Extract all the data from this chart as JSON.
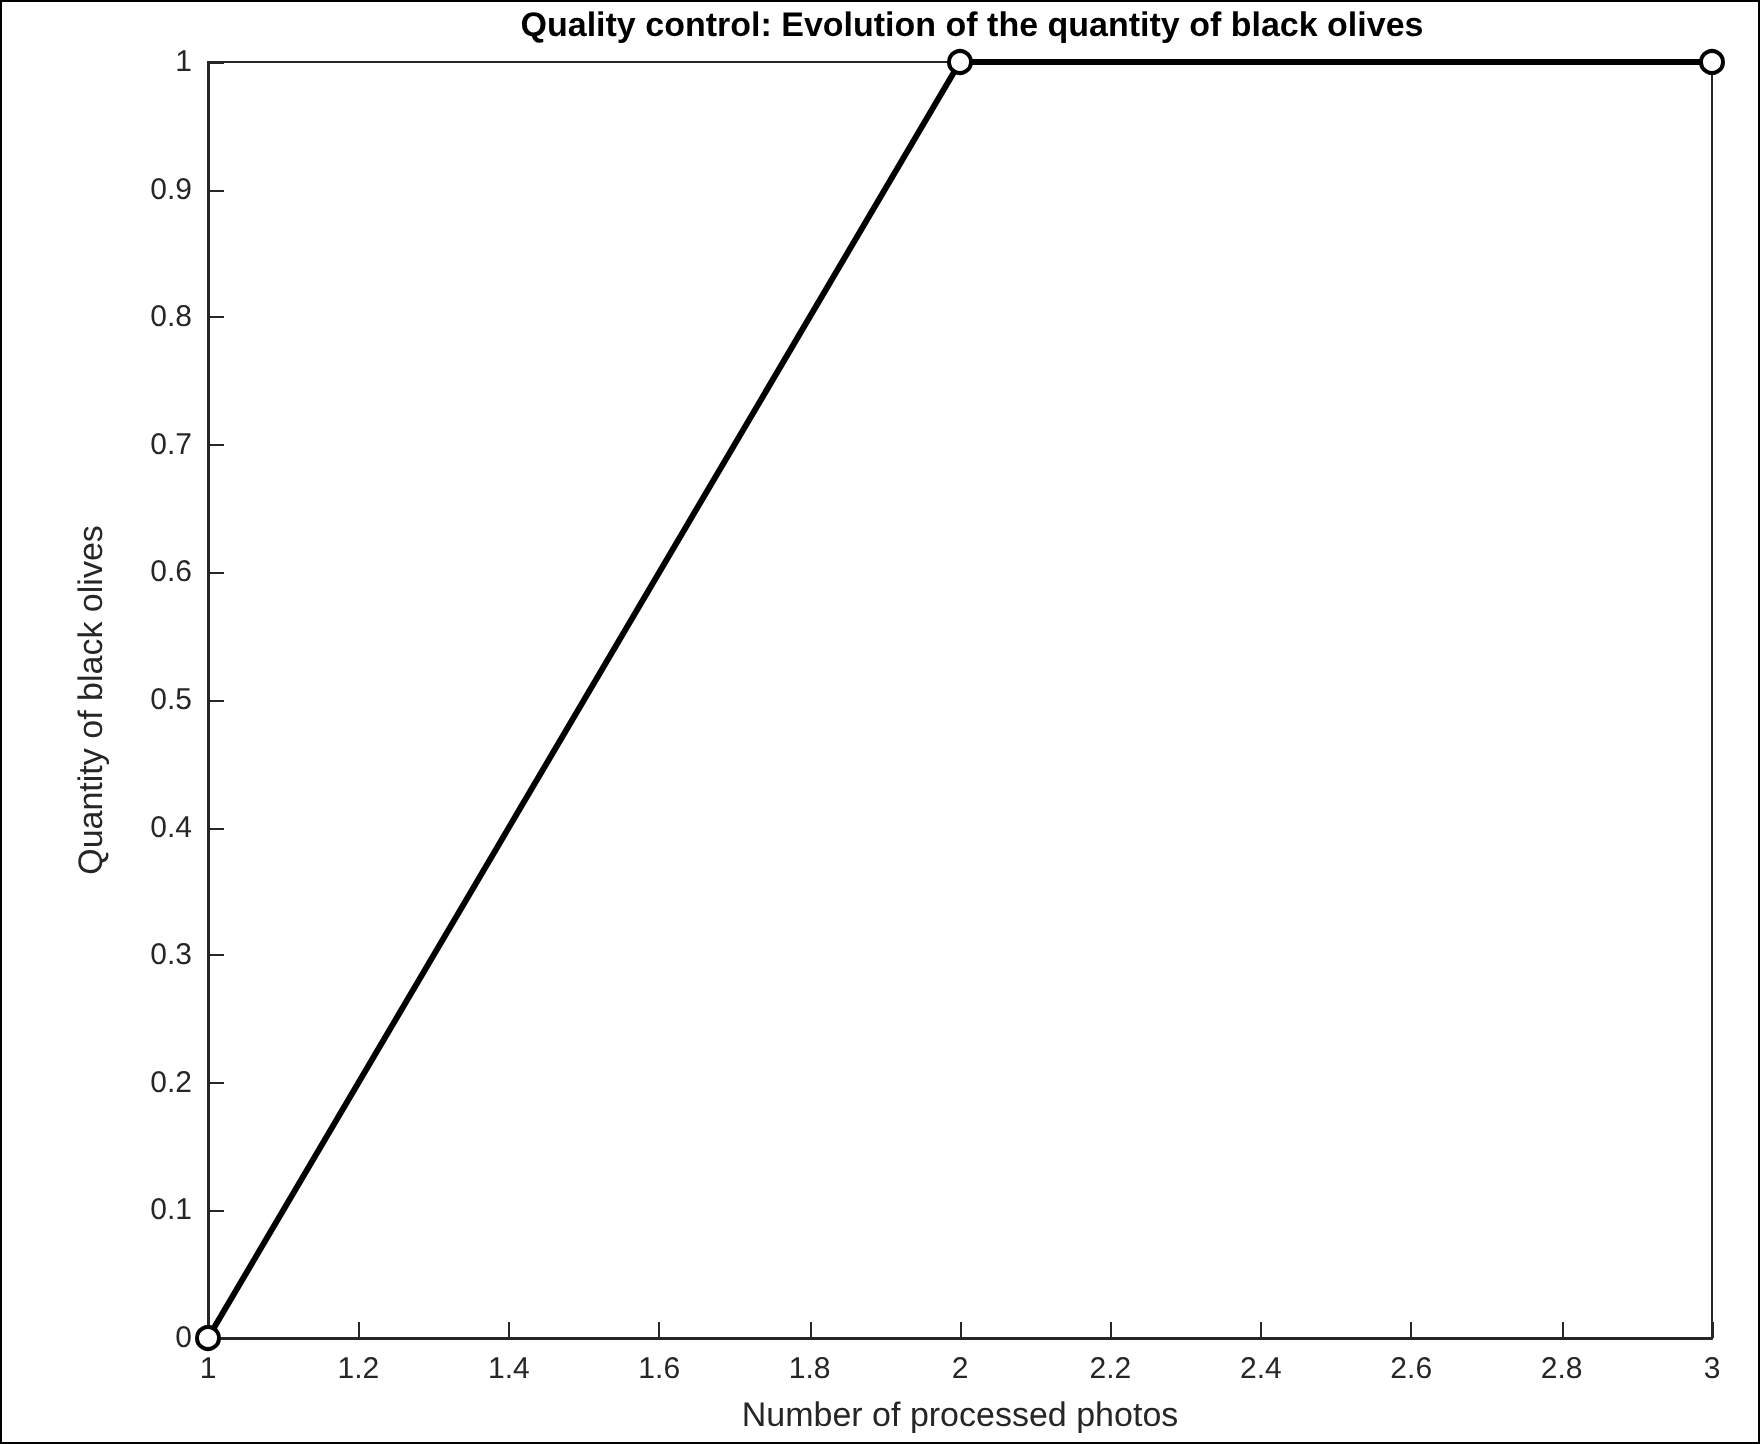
{
  "chart_data": {
    "type": "line",
    "title": "Quality control: Evolution of the quantity of black olives",
    "xlabel": "Number of processed photos",
    "ylabel": "Quantity of black olives",
    "x": [
      1,
      2,
      3
    ],
    "series": [
      {
        "color": "#000000",
        "values": [
          0,
          1,
          1
        ]
      }
    ],
    "xlim": [
      1,
      3
    ],
    "xticks": [
      1,
      1.2,
      1.4,
      1.6,
      1.8,
      2,
      2.2,
      2.4,
      2.6,
      2.8,
      3
    ],
    "ylim": [
      0,
      1
    ],
    "yticks": [
      0,
      0.1,
      0.2,
      0.3,
      0.4,
      0.5,
      0.6,
      0.7,
      0.8,
      0.9,
      1
    ],
    "grid": false,
    "marker": "circle",
    "line_style": "solid"
  }
}
